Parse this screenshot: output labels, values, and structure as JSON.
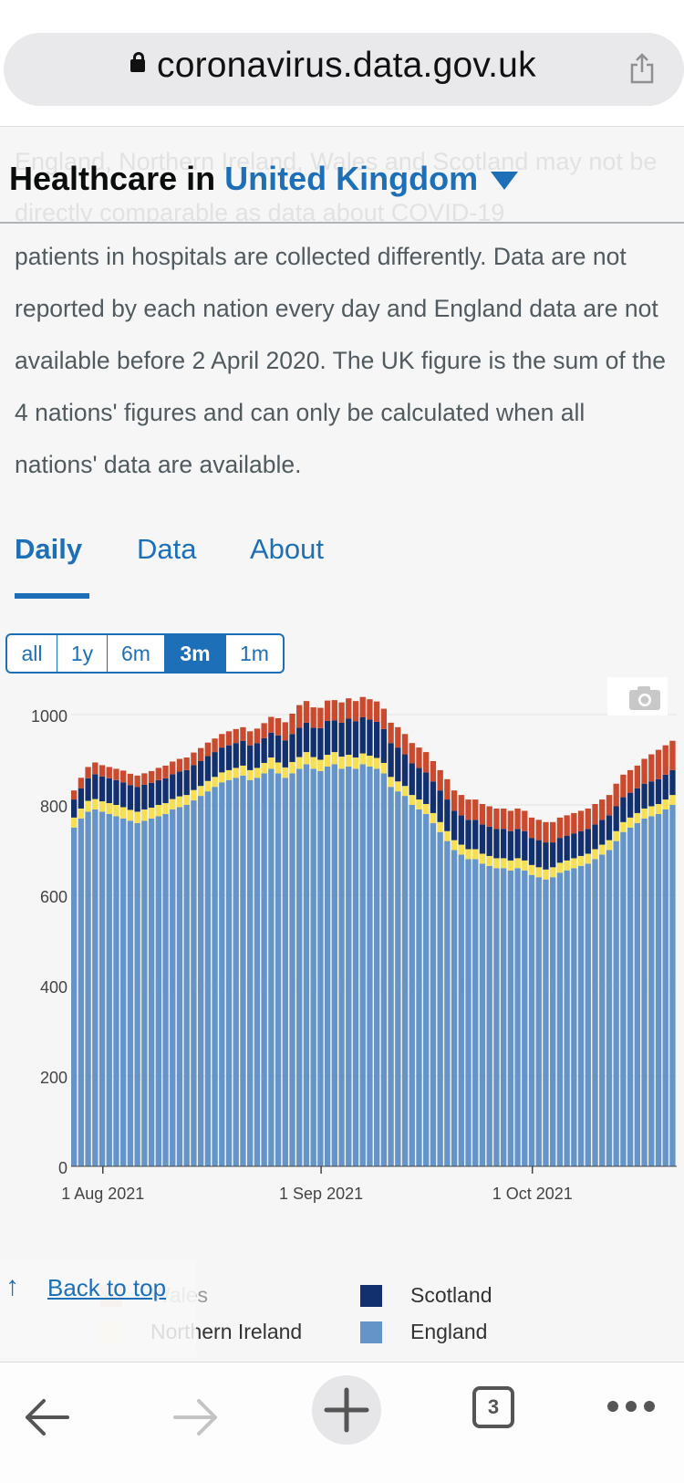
{
  "browser": {
    "url": "coronavirus.data.gov.uk",
    "tab_count": "3"
  },
  "page": {
    "ghost_text": "England, Northern Ireland, Wales and Scotland may not be directly comparable as data about COVID-19",
    "heading_prefix": "Healthcare in",
    "heading_area": "United Kingdom",
    "paragraph": "patients in hospitals are collected differently. Data are not reported by each nation every day and England data are not available before 2 April 2020. The UK figure is the sum of the 4 nations' figures and can only be calculated when all nations' data are available.",
    "tabs": [
      "Daily",
      "Data",
      "About"
    ],
    "active_tab": "Daily",
    "range_buttons": [
      "all",
      "1y",
      "6m",
      "3m",
      "1m"
    ],
    "active_range": "3m",
    "back_to_top": "Back to top"
  },
  "colors": {
    "wales": "#c94a2c",
    "scotland": "#12306e",
    "northern_ireland": "#f6df53",
    "england": "#6494c8",
    "link": "#1d70b8"
  },
  "chart_data": {
    "type": "bar",
    "stacked": true,
    "xlabel": "",
    "ylabel": "",
    "ylim": [
      0,
      1100
    ],
    "yticks": [
      0,
      200,
      400,
      600,
      800,
      1000
    ],
    "xticks": [
      {
        "label": "1 Aug 2021",
        "date": "2021-08-01"
      },
      {
        "label": "1 Sep 2021",
        "date": "2021-09-01"
      },
      {
        "label": "1 Oct 2021",
        "date": "2021-10-01"
      }
    ],
    "start_date": "2021-07-28",
    "legend_placement": "bottom",
    "series": [
      {
        "name": "England",
        "color": "#6494c8",
        "values": [
          750,
          770,
          785,
          790,
          785,
          780,
          775,
          770,
          765,
          760,
          765,
          770,
          775,
          780,
          790,
          795,
          800,
          810,
          820,
          830,
          840,
          850,
          855,
          860,
          865,
          855,
          860,
          870,
          880,
          870,
          860,
          870,
          880,
          890,
          880,
          875,
          885,
          890,
          880,
          885,
          880,
          890,
          885,
          880,
          870,
          840,
          830,
          820,
          800,
          790,
          780,
          760,
          740,
          720,
          700,
          690,
          680,
          680,
          670,
          665,
          660,
          660,
          655,
          660,
          655,
          645,
          640,
          635,
          640,
          650,
          655,
          660,
          665,
          670,
          680,
          690,
          700,
          720,
          740,
          750,
          760,
          770,
          775,
          780,
          790,
          800
        ]
      },
      {
        "name": "Northern Ireland",
        "color": "#f6df53",
        "values": [
          22,
          22,
          24,
          23,
          23,
          24,
          25,
          25,
          24,
          25,
          25,
          24,
          25,
          24,
          23,
          24,
          22,
          23,
          22,
          23,
          22,
          22,
          22,
          22,
          22,
          22,
          22,
          23,
          25,
          24,
          23,
          25,
          26,
          27,
          26,
          25,
          26,
          27,
          27,
          26,
          25,
          24,
          24,
          24,
          23,
          22,
          22,
          22,
          22,
          22,
          22,
          22,
          22,
          22,
          22,
          22,
          22,
          22,
          22,
          22,
          22,
          22,
          22,
          22,
          22,
          22,
          22,
          22,
          22,
          22,
          22,
          22,
          22,
          22,
          22,
          22,
          22,
          22,
          22,
          22,
          22,
          22,
          22,
          22,
          22,
          22
        ]
      },
      {
        "name": "Scotland",
        "color": "#12306e",
        "values": [
          40,
          45,
          50,
          55,
          55,
          55,
          55,
          55,
          55,
          55,
          55,
          55,
          55,
          55,
          55,
          55,
          55,
          55,
          55,
          55,
          55,
          55,
          55,
          55,
          55,
          55,
          55,
          55,
          55,
          60,
          60,
          62,
          65,
          65,
          65,
          70,
          75,
          70,
          75,
          80,
          80,
          80,
          80,
          80,
          75,
          75,
          75,
          70,
          70,
          70,
          70,
          70,
          70,
          70,
          65,
          65,
          65,
          65,
          65,
          65,
          65,
          65,
          65,
          65,
          65,
          60,
          60,
          60,
          55,
          55,
          55,
          55,
          55,
          55,
          55,
          55,
          55,
          55,
          55,
          55,
          55,
          55,
          55,
          55,
          55,
          55
        ]
      },
      {
        "name": "Wales",
        "color": "#c94a2c",
        "values": [
          20,
          23,
          25,
          26,
          25,
          25,
          25,
          26,
          25,
          25,
          25,
          26,
          27,
          28,
          28,
          28,
          28,
          28,
          29,
          30,
          30,
          30,
          31,
          31,
          30,
          31,
          32,
          33,
          35,
          38,
          40,
          45,
          50,
          48,
          45,
          45,
          45,
          45,
          45,
          45,
          45,
          45,
          45,
          45,
          45,
          45,
          45,
          45,
          45,
          45,
          45,
          45,
          45,
          45,
          45,
          45,
          45,
          45,
          45,
          45,
          45,
          45,
          45,
          45,
          45,
          45,
          45,
          45,
          45,
          45,
          45,
          45,
          45,
          45,
          45,
          45,
          45,
          50,
          50,
          50,
          50,
          55,
          60,
          65,
          65,
          65
        ]
      }
    ]
  }
}
